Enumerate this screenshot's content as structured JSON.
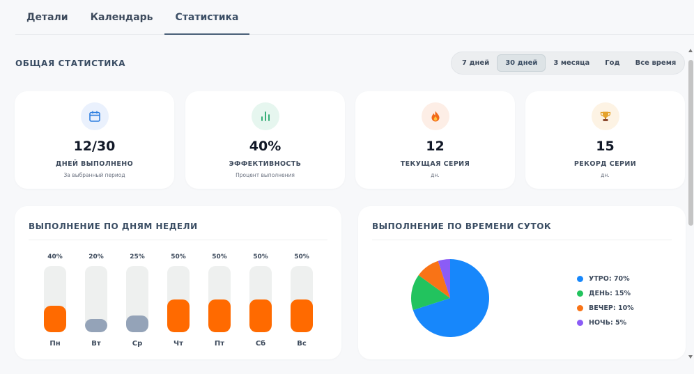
{
  "tabs": [
    {
      "label": "Детали",
      "active": false
    },
    {
      "label": "Календарь",
      "active": false
    },
    {
      "label": "Статистика",
      "active": true
    }
  ],
  "section_title": "ОБЩАЯ СТАТИСТИКА",
  "periods": [
    {
      "label": "7 дней",
      "active": false
    },
    {
      "label": "30 дней",
      "active": true
    },
    {
      "label": "3 месяца",
      "active": false
    },
    {
      "label": "Год",
      "active": false
    },
    {
      "label": "Все время",
      "active": false
    }
  ],
  "stats": [
    {
      "icon": "calendar-icon",
      "value": "12/30",
      "label": "ДНЕЙ ВЫПОЛНЕНО",
      "sub": "За выбранный период",
      "icon_bg": "#eaf1fd",
      "icon_color": "#2f7fe0"
    },
    {
      "icon": "bar-chart-icon",
      "value": "40%",
      "label": "ЭФФЕКТИВНОСТЬ",
      "sub": "Процент выполнения",
      "icon_bg": "#e6f6ef",
      "icon_color": "#22a66a"
    },
    {
      "icon": "fire-icon",
      "value": "12",
      "label": "ТЕКУЩАЯ СЕРИЯ",
      "sub": "дн.",
      "icon_bg": "#fdeee6",
      "icon_color": "#f26a1b"
    },
    {
      "icon": "trophy-icon",
      "value": "15",
      "label": "РЕКОРД СЕРИИ",
      "sub": "дн.",
      "icon_bg": "#fdf3e4",
      "icon_color": "#c9851d"
    }
  ],
  "weekday_panel": {
    "title": "ВЫПОЛНЕНИЕ ПО ДНЯМ НЕДЕЛИ"
  },
  "timeofday_panel": {
    "title": "ВЫПОЛНЕНИЕ ПО ВРЕМЕНИ СУТОК"
  },
  "chart_data": [
    {
      "type": "bar",
      "title": "ВЫПОЛНЕНИЕ ПО ДНЯМ НЕДЕЛИ",
      "categories": [
        "Пн",
        "Вт",
        "Ср",
        "Чт",
        "Пт",
        "Сб",
        "Вс"
      ],
      "values": [
        40,
        20,
        25,
        50,
        50,
        50,
        50
      ],
      "value_labels": [
        "40%",
        "20%",
        "25%",
        "50%",
        "50%",
        "50%",
        "50%"
      ],
      "colors": [
        "#ff6a00",
        "#94a3b8",
        "#94a3b8",
        "#ff6a00",
        "#ff6a00",
        "#ff6a00",
        "#ff6a00"
      ],
      "ylim": [
        0,
        100
      ],
      "grid": false
    },
    {
      "type": "pie",
      "title": "ВЫПОЛНЕНИЕ ПО ВРЕМЕНИ СУТОК",
      "legend_position": "right",
      "slices": [
        {
          "label": "УТРО: 70%",
          "value": 70,
          "color": "#1787fb"
        },
        {
          "label": "ДЕНЬ: 15%",
          "value": 15,
          "color": "#22c35e"
        },
        {
          "label": "ВЕЧЕР: 10%",
          "value": 10,
          "color": "#f97316"
        },
        {
          "label": "НОЧЬ: 5%",
          "value": 5,
          "color": "#8b5cf6"
        }
      ]
    }
  ]
}
